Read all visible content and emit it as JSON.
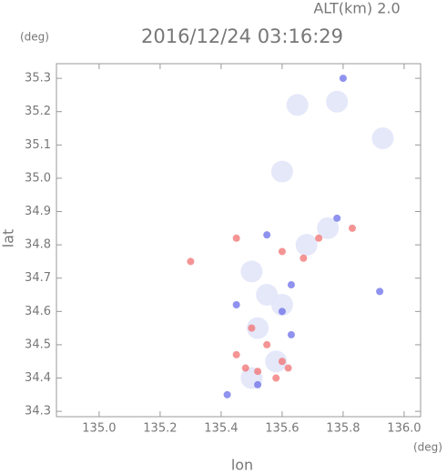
{
  "chart_data": {
    "type": "scatter",
    "title": "2016/12/24 03:16:29",
    "subtitle": "ALT(km)  2.0",
    "y_unit": "(deg)",
    "x_unit": "(deg)",
    "x_label": "lon",
    "y_label": "lat",
    "xlim": [
      134.86,
      136.054
    ],
    "ylim": [
      34.284,
      35.344
    ],
    "xticks": [
      {
        "value": 135.0,
        "label": "135.0"
      },
      135.2,
      135.4,
      135.6,
      135.8,
      {
        "value": 136.0,
        "label": "136.0"
      }
    ],
    "yticks": [
      34.3,
      34.4,
      34.5,
      34.6,
      34.7,
      34.8,
      34.9,
      {
        "value": 35.0,
        "label": "35.0"
      },
      35.1,
      35.2,
      35.3
    ],
    "series": [
      {
        "color": "#e2e5f8",
        "x": [
          135.6,
          135.65,
          135.78,
          135.93,
          135.55,
          135.52,
          135.58,
          135.5,
          135.6,
          135.68,
          135.75,
          135.5
        ],
        "values": [
          35.02,
          35.22,
          35.23,
          35.12,
          34.65,
          34.55,
          34.45,
          34.4,
          34.62,
          34.8,
          34.85,
          34.72
        ]
      },
      {
        "color": "#f07070",
        "x": [
          135.3,
          135.45,
          135.6,
          135.67,
          135.72,
          135.83,
          135.5,
          135.55,
          135.45,
          135.6,
          135.52,
          135.62,
          135.58,
          135.48
        ],
        "values": [
          34.75,
          34.82,
          34.78,
          34.76,
          34.82,
          34.85,
          34.55,
          34.5,
          34.47,
          34.45,
          34.42,
          34.43,
          34.4,
          34.43
        ]
      },
      {
        "color": "#6a6ee8",
        "x": [
          135.6,
          135.42,
          135.52,
          135.45,
          135.63,
          135.78,
          135.55,
          135.63,
          135.92,
          135.8
        ],
        "values": [
          34.6,
          34.35,
          34.38,
          34.62,
          34.68,
          34.88,
          34.83,
          34.53,
          34.66,
          35.3
        ]
      }
    ]
  }
}
